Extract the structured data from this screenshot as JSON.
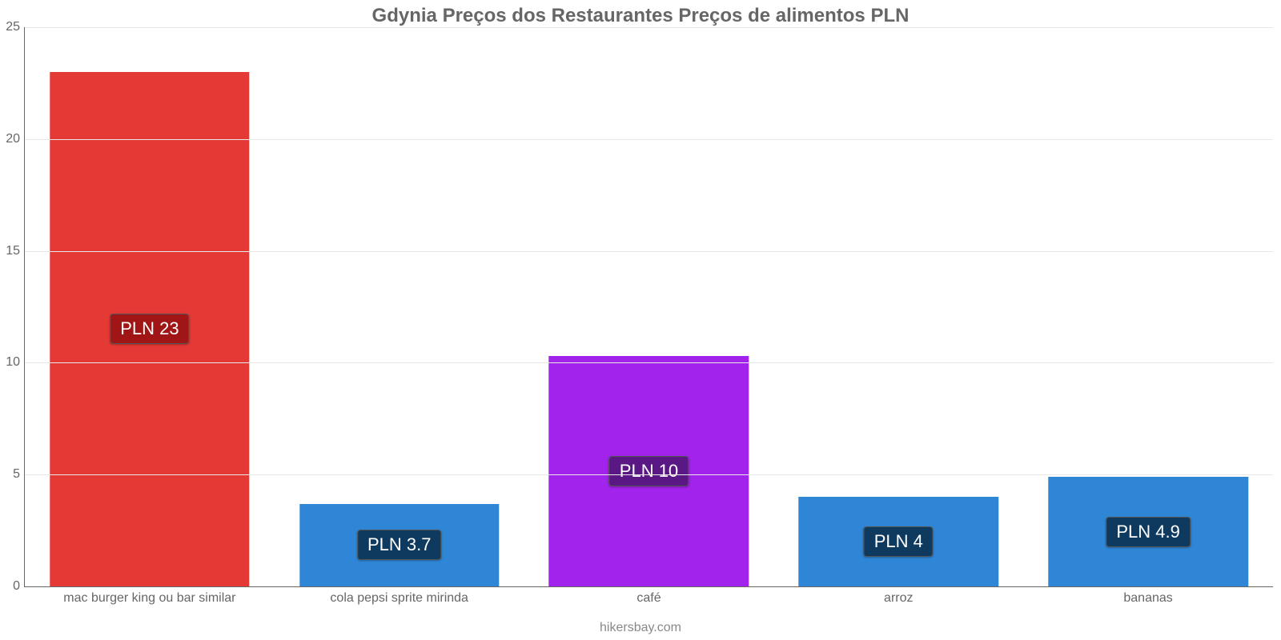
{
  "chart": {
    "type": "bar",
    "title": "Gdynia Preços dos Restaurantes Preços de alimentos PLN",
    "title_fontsize": 24,
    "title_color": "#666666",
    "background_color": "#ffffff",
    "grid_color": "#e8e8e8",
    "axis_color": "#666666",
    "ymax": 25,
    "yticks": [
      0,
      5,
      10,
      15,
      20,
      25
    ],
    "ytick_fontsize": 16,
    "bar_width_pct": 80,
    "value_label_fontsize": 22,
    "xlabel_fontsize": 16,
    "source_text": "hikersbay.com",
    "source_fontsize": 16,
    "source_color": "#888888",
    "categories": [
      {
        "label": "mac burger king ou bar similar",
        "value": 23,
        "display": "PLN 23",
        "bar_color": "#e53935",
        "badge_color": "#a01616"
      },
      {
        "label": "cola pepsi sprite mirinda",
        "value": 3.7,
        "display": "PLN 3.7",
        "bar_color": "#2f86d6",
        "badge_color": "#0f3a5f"
      },
      {
        "label": "café",
        "value": 10.3,
        "display": "PLN 10",
        "bar_color": "#a223eb",
        "badge_color": "#5a1885"
      },
      {
        "label": "arroz",
        "value": 4,
        "display": "PLN 4",
        "bar_color": "#2f86d6",
        "badge_color": "#0f3a5f"
      },
      {
        "label": "bananas",
        "value": 4.9,
        "display": "PLN 4.9",
        "bar_color": "#2f86d6",
        "badge_color": "#0f3a5f"
      }
    ]
  }
}
